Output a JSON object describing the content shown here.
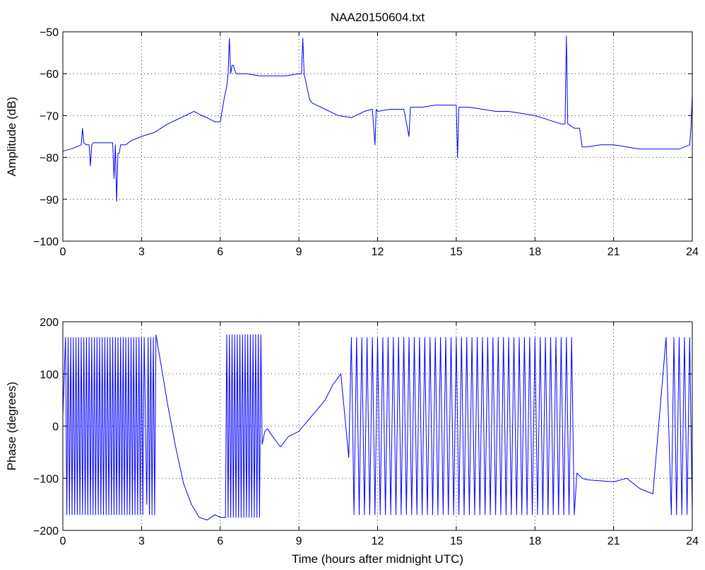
{
  "chart_data": [
    {
      "type": "line",
      "title": "NAA20150604.txt",
      "xlabel": "",
      "ylabel": "Amplitude (dB)",
      "xlim": [
        0,
        24
      ],
      "ylim": [
        -100,
        -50
      ],
      "xticks": [
        0,
        3,
        6,
        9,
        12,
        15,
        18,
        21,
        24
      ],
      "xtick_labels": [
        "0",
        "3",
        "6",
        "9",
        "12",
        "15",
        "18",
        "21",
        "24"
      ],
      "yticks": [
        -100,
        -90,
        -80,
        -70,
        -60,
        -50
      ],
      "ytick_labels": [
        "−100",
        "−90",
        "−80",
        "−70",
        "−60",
        "−50"
      ],
      "grid": true,
      "series": [
        {
          "color": "#0000ff",
          "x": [
            0,
            0.3,
            0.5,
            0.7,
            0.75,
            0.8,
            0.9,
            1.0,
            1.05,
            1.1,
            1.15,
            1.2,
            1.5,
            1.9,
            1.95,
            2.0,
            2.05,
            2.1,
            2.15,
            2.2,
            2.4,
            2.6,
            3.0,
            3.5,
            4.0,
            4.5,
            5.0,
            5.3,
            5.5,
            5.8,
            6.0,
            6.15,
            6.25,
            6.3,
            6.35,
            6.4,
            6.45,
            6.5,
            6.6,
            7.0,
            7.5,
            8.0,
            8.5,
            9.0,
            9.1,
            9.15,
            9.2,
            9.3,
            9.4,
            9.5,
            10.0,
            10.5,
            11.0,
            11.5,
            11.8,
            11.9,
            11.95,
            12.0,
            12.5,
            13.0,
            13.2,
            13.25,
            13.3,
            13.7,
            14.2,
            14.5,
            15.0,
            15.05,
            15.1,
            15.5,
            16.0,
            16.5,
            17.0,
            17.5,
            18.0,
            18.5,
            19.0,
            19.15,
            19.2,
            19.25,
            19.5,
            19.7,
            19.8,
            20.0,
            20.5,
            21.0,
            21.5,
            22.0,
            22.5,
            23.0,
            23.5,
            23.9,
            23.95,
            24.0
          ],
          "y": [
            -78.5,
            -78,
            -77.5,
            -77,
            -73,
            -76.5,
            -77,
            -77,
            -82,
            -77,
            -76.5,
            -76.5,
            -76.5,
            -76.5,
            -85,
            -77,
            -90.5,
            -79,
            -79,
            -77,
            -77,
            -76,
            -75,
            -74,
            -72,
            -70.5,
            -69,
            -70,
            -70.5,
            -71.5,
            -71.5,
            -66,
            -63,
            -60,
            -51.5,
            -60,
            -58,
            -58,
            -60,
            -60,
            -60.5,
            -60.5,
            -60.5,
            -60,
            -60,
            -51.5,
            -60,
            -63,
            -66,
            -67,
            -68.5,
            -70,
            -70.5,
            -69,
            -68.5,
            -77,
            -68.5,
            -69,
            -68.5,
            -68.5,
            -75,
            -68,
            -68,
            -68,
            -67.5,
            -67.5,
            -67.5,
            -80,
            -68,
            -68,
            -68.5,
            -69,
            -69,
            -69.5,
            -70,
            -71,
            -72,
            -72,
            -51,
            -72,
            -73,
            -73,
            -77.5,
            -77.5,
            -77,
            -77,
            -77.5,
            -78,
            -78,
            -78,
            -78,
            -77,
            -73,
            -65
          ]
        }
      ]
    },
    {
      "type": "line",
      "title": "",
      "xlabel": "Time (hours after midnight UTC)",
      "ylabel": "Phase (degrees)",
      "xlim": [
        0,
        24
      ],
      "ylim": [
        -200,
        200
      ],
      "xticks": [
        0,
        3,
        6,
        9,
        12,
        15,
        18,
        21,
        24
      ],
      "xtick_labels": [
        "0",
        "3",
        "6",
        "9",
        "12",
        "15",
        "18",
        "21",
        "24"
      ],
      "yticks": [
        -200,
        -100,
        0,
        100,
        200
      ],
      "ytick_labels": [
        "−200",
        "−100",
        "0",
        "100",
        "200"
      ],
      "grid": true,
      "series": [
        {
          "color": "#0000ff",
          "x": [
            0,
            0.1,
            0.15,
            0.2,
            0.25,
            0.3,
            0.35,
            0.4,
            0.45,
            0.5,
            0.55,
            0.6,
            0.65,
            0.7,
            0.75,
            0.8,
            0.85,
            0.9,
            0.95,
            1.0,
            1.05,
            1.1,
            1.15,
            1.2,
            1.25,
            1.3,
            1.35,
            1.4,
            1.45,
            1.5,
            1.55,
            1.6,
            1.65,
            1.7,
            1.75,
            1.8,
            1.85,
            1.9,
            1.95,
            2.0,
            2.05,
            2.1,
            2.15,
            2.2,
            2.25,
            2.3,
            2.35,
            2.4,
            2.45,
            2.5,
            2.55,
            2.6,
            2.65,
            2.7,
            2.75,
            2.8,
            2.85,
            2.9,
            2.95,
            3.0,
            3.05,
            3.1,
            3.2,
            3.25,
            3.3,
            3.35,
            3.4,
            3.45,
            3.5,
            3.55,
            3.6,
            3.7,
            3.8,
            4.0,
            4.3,
            4.6,
            4.9,
            5.2,
            5.5,
            5.8,
            6.0,
            6.2,
            6.25,
            6.3,
            6.35,
            6.4,
            6.45,
            6.5,
            6.55,
            6.6,
            6.65,
            6.7,
            6.75,
            6.8,
            6.85,
            6.9,
            6.95,
            7.0,
            7.05,
            7.1,
            7.15,
            7.2,
            7.25,
            7.3,
            7.35,
            7.4,
            7.45,
            7.5,
            7.55,
            7.6,
            7.7,
            7.8,
            8.0,
            8.3,
            8.6,
            9.0,
            9.5,
            10.0,
            10.3,
            10.6,
            10.9,
            11.0,
            11.1,
            11.2,
            11.3,
            11.4,
            11.5,
            11.6,
            11.7,
            11.8,
            11.9,
            12.0,
            12.1,
            12.2,
            12.3,
            12.4,
            12.5,
            12.6,
            12.7,
            12.8,
            12.9,
            13.0,
            13.1,
            13.2,
            13.3,
            13.4,
            13.5,
            13.6,
            13.7,
            13.8,
            13.9,
            14.0,
            14.1,
            14.2,
            14.3,
            14.4,
            14.5,
            14.6,
            14.7,
            14.8,
            14.9,
            15.0,
            15.1,
            15.2,
            15.3,
            15.4,
            15.5,
            15.6,
            15.7,
            15.8,
            15.9,
            16.0,
            16.1,
            16.2,
            16.3,
            16.4,
            16.5,
            16.6,
            16.7,
            16.8,
            16.9,
            17.0,
            17.1,
            17.2,
            17.3,
            17.4,
            17.5,
            17.6,
            17.7,
            17.8,
            17.9,
            18.0,
            18.1,
            18.2,
            18.3,
            18.4,
            18.5,
            18.6,
            18.7,
            18.8,
            18.9,
            19.0,
            19.1,
            19.2,
            19.3,
            19.4,
            19.5,
            19.6,
            19.7,
            19.8,
            20.0,
            20.5,
            21.0,
            21.5,
            22.0,
            22.5,
            23.0,
            23.2,
            23.3,
            23.4,
            23.5,
            23.6,
            23.7,
            23.8,
            23.9,
            24.0
          ],
          "y": [
            20,
            170,
            -170,
            170,
            -170,
            170,
            -170,
            170,
            -170,
            170,
            -170,
            170,
            -170,
            170,
            -170,
            170,
            -170,
            170,
            -170,
            170,
            -170,
            170,
            -170,
            170,
            -170,
            170,
            -170,
            170,
            -170,
            170,
            -170,
            170,
            -170,
            170,
            -170,
            170,
            -170,
            170,
            -170,
            170,
            -170,
            170,
            -170,
            170,
            -170,
            170,
            -170,
            170,
            -170,
            170,
            -170,
            170,
            -170,
            170,
            -170,
            170,
            -170,
            170,
            -170,
            170,
            -170,
            170,
            -150,
            170,
            -170,
            170,
            -170,
            170,
            -170,
            175,
            160,
            130,
            100,
            40,
            -40,
            -110,
            -150,
            -175,
            -180,
            -170,
            -175,
            -175,
            175,
            -175,
            175,
            -175,
            175,
            -175,
            175,
            -175,
            175,
            -175,
            175,
            -175,
            175,
            -175,
            175,
            -175,
            175,
            -175,
            175,
            -175,
            175,
            -175,
            175,
            -175,
            175,
            -175,
            175,
            -35,
            -10,
            -5,
            -20,
            -40,
            -20,
            -10,
            20,
            50,
            80,
            100,
            -60,
            170,
            -170,
            170,
            -170,
            170,
            -170,
            170,
            -170,
            170,
            -170,
            170,
            -170,
            170,
            -170,
            170,
            -170,
            170,
            -170,
            170,
            -170,
            170,
            -170,
            170,
            -170,
            170,
            -170,
            170,
            -170,
            170,
            -170,
            170,
            -170,
            170,
            -170,
            170,
            -170,
            170,
            -170,
            170,
            -170,
            170,
            -170,
            170,
            -170,
            170,
            -170,
            170,
            -170,
            170,
            -170,
            170,
            -170,
            170,
            -170,
            170,
            -170,
            170,
            -170,
            170,
            -170,
            170,
            -170,
            170,
            -170,
            170,
            -170,
            170,
            -170,
            170,
            -170,
            170,
            -170,
            170,
            -170,
            170,
            -170,
            170,
            -170,
            170,
            -170,
            170,
            -170,
            170,
            -170,
            170,
            -170,
            -90,
            -95,
            -100,
            -103,
            -105,
            -107,
            -100,
            -120,
            -130,
            170,
            -170,
            170,
            -170,
            170,
            -170,
            170,
            -170,
            170,
            -170
          ]
        }
      ]
    }
  ]
}
